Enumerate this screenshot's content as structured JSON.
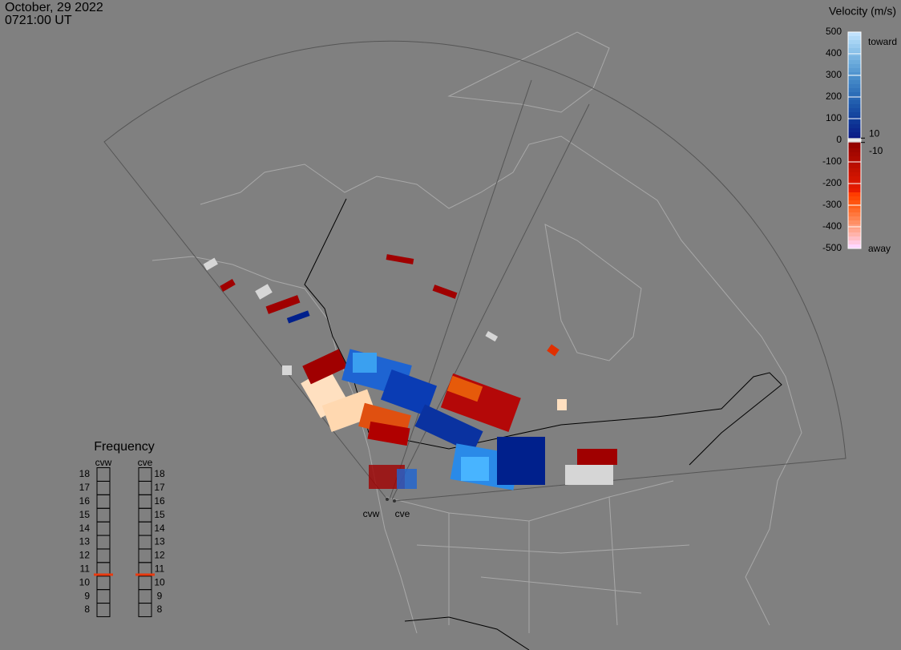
{
  "header": {
    "date": "October, 29 2022",
    "time": "0721:00 UT"
  },
  "velocity_scale": {
    "title": "Velocity (m/s)",
    "ticks": [
      500,
      400,
      300,
      200,
      100,
      0,
      -100,
      -200,
      -300,
      -400,
      -500
    ],
    "inner_ticks": [
      10,
      -10
    ],
    "toward": "toward",
    "away": "away"
  },
  "frequency": {
    "title": "Frequency",
    "ticks": [
      18,
      17,
      16,
      15,
      14,
      13,
      12,
      11,
      10,
      9,
      8
    ],
    "radars": [
      {
        "name": "cvw",
        "value": 10.6
      },
      {
        "name": "cve",
        "value": 10.6
      }
    ]
  },
  "stations": [
    "cvw",
    "cve"
  ]
}
